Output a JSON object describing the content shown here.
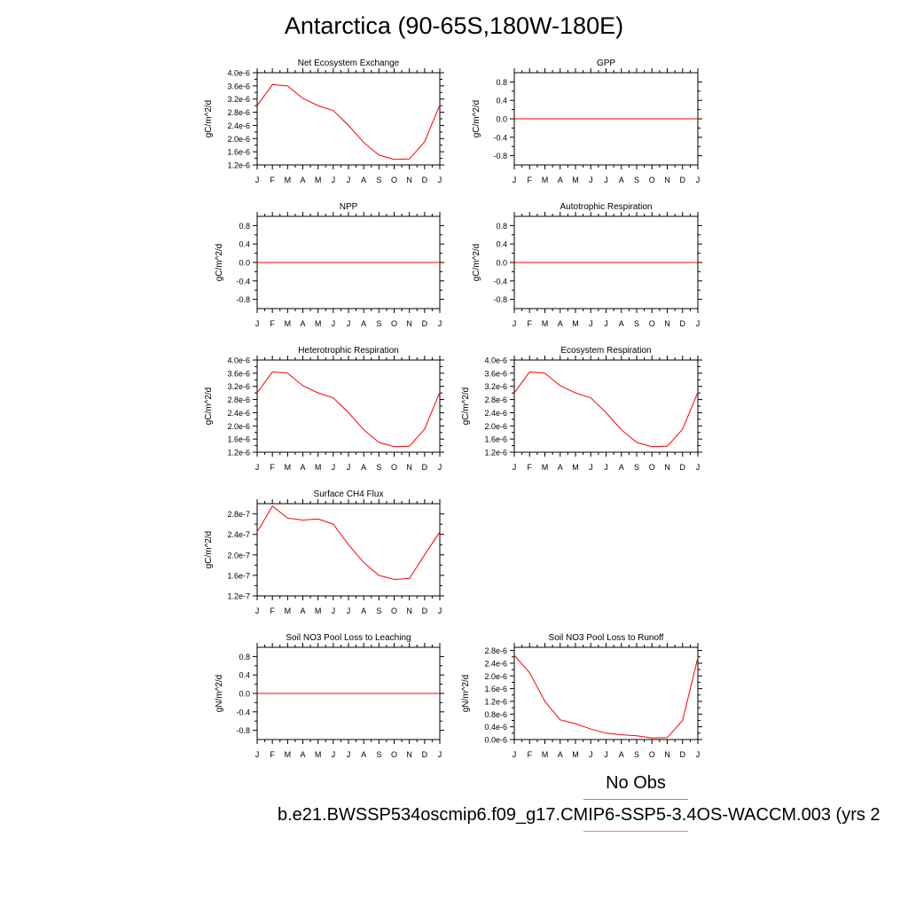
{
  "title": "Antarctica (90-65S,180W-180E)",
  "months": [
    "J",
    "F",
    "M",
    "A",
    "M",
    "J",
    "J",
    "A",
    "S",
    "O",
    "N",
    "D",
    "J"
  ],
  "legend": {
    "obs_label": "No Obs",
    "case_label": "b.e21.BWSSP534oscmip6.f09_g17.CMIP6-SSP5-3.4OS-WACCM.003 (yrs 2",
    "obs_color": "#8080ff",
    "case_color": "#ff8080"
  },
  "line_color": "#ff0000",
  "chart_data": [
    {
      "type": "line",
      "title": "Net Ecosystem Exchange",
      "ylabel": "gC/m^2/d",
      "ylim": [
        1.2e-06,
        4e-06
      ],
      "ytick_values": [
        1.2e-06,
        1.6e-06,
        2e-06,
        2.4e-06,
        2.8e-06,
        3.2e-06,
        3.6e-06,
        4e-06
      ],
      "ytick_labels": [
        "1.2e-6",
        "1.6e-6",
        "2.0e-6",
        "2.4e-6",
        "2.8e-6",
        "3.2e-6",
        "3.6e-6",
        "4.0e-6"
      ],
      "series": [
        {
          "values": [
            3e-06,
            3.64e-06,
            3.6e-06,
            3.22e-06,
            3e-06,
            2.85e-06,
            2.4e-06,
            1.88e-06,
            1.5e-06,
            1.37e-06,
            1.38e-06,
            1.9e-06,
            3.02e-06
          ]
        }
      ]
    },
    {
      "type": "line",
      "title": "GPP",
      "ylabel": "gC/m^2/d",
      "ylim": [
        -1.0,
        1.0
      ],
      "ytick_values": [
        -0.8,
        -0.4,
        0.0,
        0.4,
        0.8
      ],
      "ytick_labels": [
        "-0.8",
        "-0.4",
        "0.0",
        "0.4",
        "0.8"
      ],
      "series": [
        {
          "values": [
            0,
            0,
            0,
            0,
            0,
            0,
            0,
            0,
            0,
            0,
            0,
            0,
            0
          ]
        }
      ]
    },
    {
      "type": "line",
      "title": "NPP",
      "ylabel": "gC/m^2/d",
      "ylim": [
        -1.0,
        1.0
      ],
      "ytick_values": [
        -0.8,
        -0.4,
        0.0,
        0.4,
        0.8
      ],
      "ytick_labels": [
        "-0.8",
        "-0.4",
        "0.0",
        "0.4",
        "0.8"
      ],
      "series": [
        {
          "values": [
            0,
            0,
            0,
            0,
            0,
            0,
            0,
            0,
            0,
            0,
            0,
            0,
            0
          ]
        }
      ]
    },
    {
      "type": "line",
      "title": "Autotrophic Respiration",
      "ylabel": "gC/m^2/d",
      "ylim": [
        -1.0,
        1.0
      ],
      "ytick_values": [
        -0.8,
        -0.4,
        0.0,
        0.4,
        0.8
      ],
      "ytick_labels": [
        "-0.8",
        "-0.4",
        "0.0",
        "0.4",
        "0.8"
      ],
      "series": [
        {
          "values": [
            0,
            0,
            0,
            0,
            0,
            0,
            0,
            0,
            0,
            0,
            0,
            0,
            0
          ]
        }
      ]
    },
    {
      "type": "line",
      "title": "Heterotrophic Respiration",
      "ylabel": "gC/m^2/d",
      "ylim": [
        1.2e-06,
        4e-06
      ],
      "ytick_values": [
        1.2e-06,
        1.6e-06,
        2e-06,
        2.4e-06,
        2.8e-06,
        3.2e-06,
        3.6e-06,
        4e-06
      ],
      "ytick_labels": [
        "1.2e-6",
        "1.6e-6",
        "2.0e-6",
        "2.4e-6",
        "2.8e-6",
        "3.2e-6",
        "3.6e-6",
        "4.0e-6"
      ],
      "series": [
        {
          "values": [
            3e-06,
            3.64e-06,
            3.6e-06,
            3.22e-06,
            3e-06,
            2.85e-06,
            2.4e-06,
            1.88e-06,
            1.5e-06,
            1.37e-06,
            1.38e-06,
            1.9e-06,
            3.02e-06
          ]
        }
      ]
    },
    {
      "type": "line",
      "title": "Ecosystem Respiration",
      "ylabel": "gC/m^2/d",
      "ylim": [
        1.2e-06,
        4e-06
      ],
      "ytick_values": [
        1.2e-06,
        1.6e-06,
        2e-06,
        2.4e-06,
        2.8e-06,
        3.2e-06,
        3.6e-06,
        4e-06
      ],
      "ytick_labels": [
        "1.2e-6",
        "1.6e-6",
        "2.0e-6",
        "2.4e-6",
        "2.8e-6",
        "3.2e-6",
        "3.6e-6",
        "4.0e-6"
      ],
      "series": [
        {
          "values": [
            3e-06,
            3.64e-06,
            3.6e-06,
            3.22e-06,
            3e-06,
            2.85e-06,
            2.4e-06,
            1.88e-06,
            1.5e-06,
            1.37e-06,
            1.38e-06,
            1.9e-06,
            3.02e-06
          ]
        }
      ]
    },
    {
      "type": "line",
      "title": "Surface CH4 Flux",
      "ylabel": "gC/m^2/d",
      "ylim": [
        1.2e-07,
        3e-07
      ],
      "ytick_values": [
        1.2e-07,
        1.6e-07,
        2e-07,
        2.4e-07,
        2.8e-07
      ],
      "ytick_labels": [
        "1.2e-7",
        "1.6e-7",
        "2.0e-7",
        "2.4e-7",
        "2.8e-7"
      ],
      "series": [
        {
          "values": [
            2.45e-07,
            2.95e-07,
            2.72e-07,
            2.68e-07,
            2.7e-07,
            2.6e-07,
            2.2e-07,
            1.85e-07,
            1.6e-07,
            1.52e-07,
            1.54e-07,
            2e-07,
            2.45e-07
          ]
        }
      ]
    },
    {
      "type": "line",
      "title": "Soil NO3 Pool Loss to Leaching",
      "ylabel": "gN/m^2/d",
      "ylim": [
        -1.0,
        1.0
      ],
      "ytick_values": [
        -0.8,
        -0.4,
        0.0,
        0.4,
        0.8
      ],
      "ytick_labels": [
        "-0.8",
        "-0.4",
        "0.0",
        "0.4",
        "0.8"
      ],
      "series": [
        {
          "values": [
            0,
            0,
            0,
            0,
            0,
            0,
            0,
            0,
            0,
            0,
            0,
            0,
            0
          ]
        }
      ]
    },
    {
      "type": "line",
      "title": "Soil NO3 Pool Loss to Runoff",
      "ylabel": "gN/m^2/d",
      "ylim": [
        0.0,
        2.9e-06
      ],
      "ytick_values": [
        0.0,
        4e-07,
        8e-07,
        1.2e-06,
        1.6e-06,
        2e-06,
        2.4e-06,
        2.8e-06
      ],
      "ytick_labels": [
        "0.0e-6",
        "0.4e-6",
        "0.8e-6",
        "1.2e-6",
        "1.6e-6",
        "2.0e-6",
        "2.4e-6",
        "2.8e-6"
      ],
      "series": [
        {
          "values": [
            2.65e-06,
            2.1e-06,
            1.2e-06,
            6.2e-07,
            5e-07,
            3.3e-07,
            2e-07,
            1.5e-07,
            1.2e-07,
            5e-08,
            6e-08,
            6e-07,
            2.58e-06
          ]
        }
      ]
    }
  ]
}
